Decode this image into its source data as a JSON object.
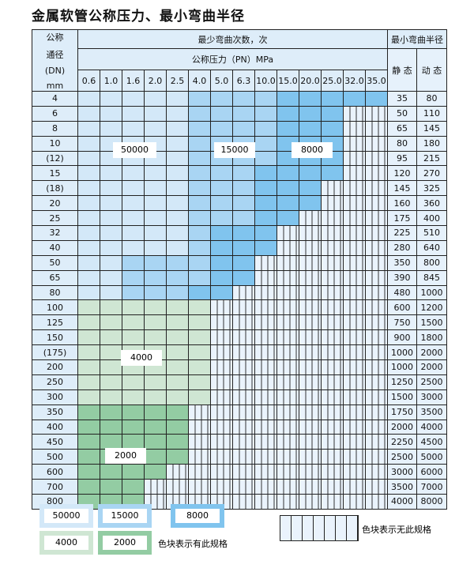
{
  "title": "金属软管公称压力、最小弯曲半径",
  "header": {
    "dn": [
      "公称",
      "通径",
      "(DN)",
      "mm"
    ],
    "bend_count": "最少弯曲次数，次",
    "pressure": "公称压力（PN）MPa",
    "min_radius": "最小弯曲半径",
    "static": "静 态",
    "dynamic": "动 态",
    "pressures": [
      "0.6",
      "1.0",
      "1.6",
      "2.0",
      "2.5",
      "4.0",
      "5.0",
      "6.3",
      "10.0",
      "15.0",
      "20.0",
      "25.0",
      "32.0",
      "35.0"
    ]
  },
  "rows": [
    {
      "dn": "4",
      "s": "35",
      "d": "80",
      "cells": "AAAAABBBBCCCCC"
    },
    {
      "dn": "6",
      "s": "50",
      "d": "110",
      "cells": "AAAAABBBBCCCNN"
    },
    {
      "dn": "8",
      "s": "65",
      "d": "145",
      "cells": "AAAAABBBBCCCNN"
    },
    {
      "dn": "10",
      "s": "80",
      "d": "180",
      "cells": "AAAAABBBBCCCNN"
    },
    {
      "dn": "(12)",
      "s": "95",
      "d": "215",
      "cells": "AAAAABBBBCCCNN"
    },
    {
      "dn": "15",
      "s": "120",
      "d": "270",
      "cells": "AAAAABBBCCCCNN"
    },
    {
      "dn": "(18)",
      "s": "145",
      "d": "325",
      "cells": "AAAAABBBCCCNNN"
    },
    {
      "dn": "20",
      "s": "160",
      "d": "360",
      "cells": "AAAAABBBCCCNNN"
    },
    {
      "dn": "25",
      "s": "175",
      "d": "400",
      "cells": "AAAAABBBCCNNNN"
    },
    {
      "dn": "32",
      "s": "225",
      "d": "510",
      "cells": "AAAAABCCCNNNNN"
    },
    {
      "dn": "40",
      "s": "280",
      "d": "640",
      "cells": "AAAAABCCCNNNNN"
    },
    {
      "dn": "50",
      "s": "350",
      "d": "800",
      "cells": "AABBBBCCNNNNNN"
    },
    {
      "dn": "65",
      "s": "390",
      "d": "845",
      "cells": "AABBBBCCNNNNNN"
    },
    {
      "dn": "80",
      "s": "480",
      "d": "1000",
      "cells": "AABBBCCNNNNNNN"
    },
    {
      "dn": "100",
      "s": "600",
      "d": "1200",
      "cells": "GGGGGGNNNNNNNN"
    },
    {
      "dn": "125",
      "s": "750",
      "d": "1500",
      "cells": "GGGGGGNNNNNNNN"
    },
    {
      "dn": "150",
      "s": "900",
      "d": "1800",
      "cells": "GGGGGGNNNNNNNN"
    },
    {
      "dn": "(175)",
      "s": "1000",
      "d": "2000",
      "cells": "GGGGGGNNNNNNNN"
    },
    {
      "dn": "200",
      "s": "1000",
      "d": "2000",
      "cells": "GGGGGGNNNNNNNN"
    },
    {
      "dn": "250",
      "s": "1250",
      "d": "2500",
      "cells": "GGGGGGNNNNNNNN"
    },
    {
      "dn": "300",
      "s": "1500",
      "d": "3000",
      "cells": "GGGGGGNNNNNNNN"
    },
    {
      "dn": "350",
      "s": "1750",
      "d": "3500",
      "cells": "HHHHHNNNNNNNNN"
    },
    {
      "dn": "400",
      "s": "2000",
      "d": "4000",
      "cells": "HHHHHNNNNNNNNN"
    },
    {
      "dn": "450",
      "s": "2250",
      "d": "4500",
      "cells": "HHHHHNNNNNNNNN"
    },
    {
      "dn": "500",
      "s": "2500",
      "d": "5000",
      "cells": "HHHHHNNNNNNNNN"
    },
    {
      "dn": "600",
      "s": "3000",
      "d": "6000",
      "cells": "HHHHNNNNNNNNNN"
    },
    {
      "dn": "700",
      "s": "3500",
      "d": "7000",
      "cells": "HHHNNNNNNNNNNN"
    },
    {
      "dn": "800",
      "s": "4000",
      "d": "8000",
      "cells": "HHHNNNNNNNNNNN"
    }
  ],
  "region_labels": {
    "a": "50000",
    "b": "15000",
    "c": "8000",
    "g": "4000",
    "h": "2000"
  },
  "legend": {
    "items": [
      "50000",
      "15000",
      "8000",
      "4000",
      "2000"
    ],
    "available": "色块表示有此规格",
    "unavailable": "色块表示无此规格"
  },
  "colors": {
    "50000": "#d3e8f8",
    "15000": "#a9d5f3",
    "8000": "#80c4ee",
    "4000": "#cfe6d3",
    "2000": "#93cca3"
  }
}
